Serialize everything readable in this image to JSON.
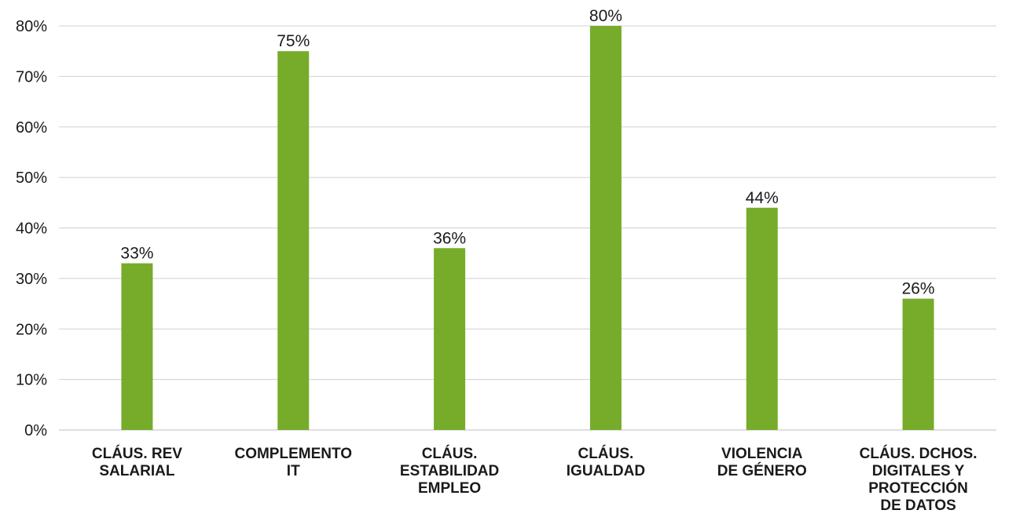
{
  "chart_data": {
    "type": "bar",
    "title": "",
    "xlabel": "",
    "ylabel": "",
    "categories": [
      [
        "CLÁUS. REV",
        "SALARIAL"
      ],
      [
        "COMPLEMENTO",
        "IT"
      ],
      [
        "CLÁUS.",
        "ESTABILIDAD",
        "EMPLEO"
      ],
      [
        "CLÁUS.",
        "IGUALDAD"
      ],
      [
        "VIOLENCIA",
        "DE GÉNERO"
      ],
      [
        "CLÁUS. DCHOS.",
        "DIGITALES Y",
        "PROTECCIÓN",
        "DE DATOS"
      ]
    ],
    "values": [
      33,
      75,
      36,
      80,
      44,
      26
    ],
    "value_labels": [
      "33%",
      "75%",
      "36%",
      "80%",
      "44%",
      "26%"
    ],
    "ylim": [
      0,
      80
    ],
    "yticks": [
      0,
      10,
      20,
      30,
      40,
      50,
      60,
      70,
      80
    ],
    "ytick_labels": [
      "0%",
      "10%",
      "20%",
      "30%",
      "40%",
      "50%",
      "60%",
      "70%",
      "80%"
    ],
    "grid": true,
    "legend": "none",
    "colors": {
      "bar": "#76ac2a",
      "grid": "#d0d0d0",
      "axis": "#bfbfbf"
    }
  }
}
